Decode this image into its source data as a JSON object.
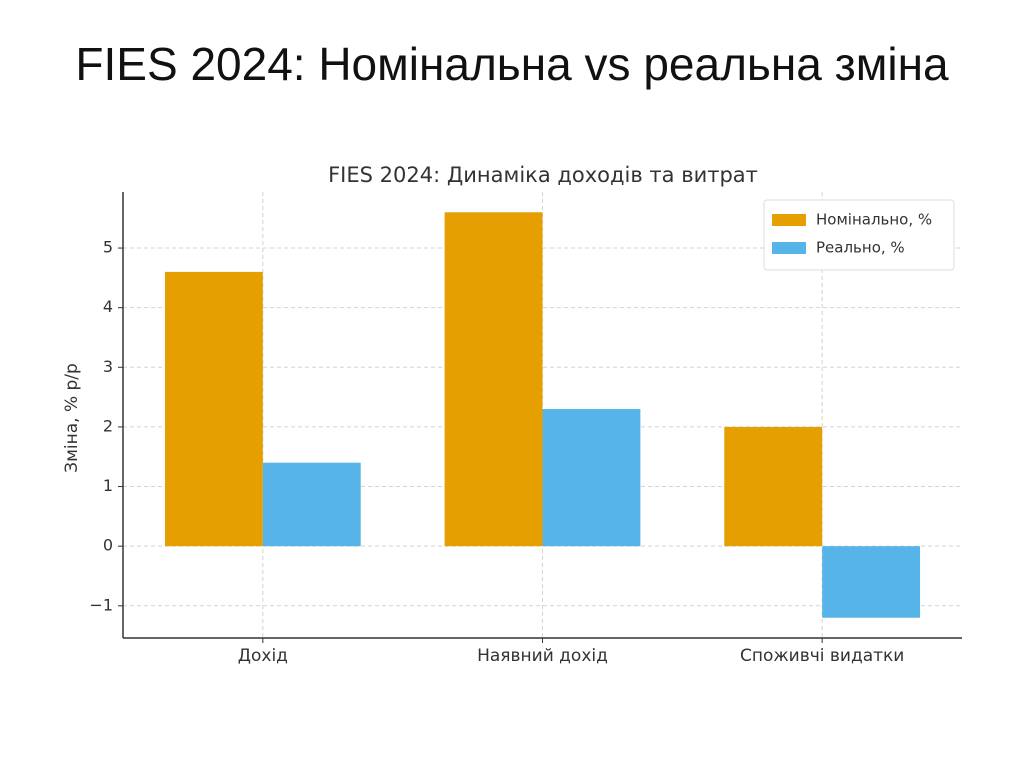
{
  "slide_title": "FIES 2024: Номінальна vs реальна зміна",
  "chart_data": {
    "type": "bar",
    "title": "FIES 2024: Динаміка доходів та витрат",
    "y_label": "Зміна, % р/р",
    "categories": [
      "Дохід",
      "Наявний дохід",
      "Споживчі видатки"
    ],
    "series": [
      {
        "name": "Номінально, %",
        "color": "#e69f00",
        "values": [
          4.6,
          5.6,
          2.0
        ]
      },
      {
        "name": "Реально, %",
        "color": "#56b4e9",
        "values": [
          1.4,
          2.3,
          -1.2
        ]
      }
    ],
    "ylim": [
      -1.54,
      5.94
    ],
    "yticks": [
      {
        "value": -1,
        "label": "−1"
      },
      0,
      1,
      2,
      3,
      4,
      5
    ],
    "grid": true,
    "legend": "upper-right"
  }
}
